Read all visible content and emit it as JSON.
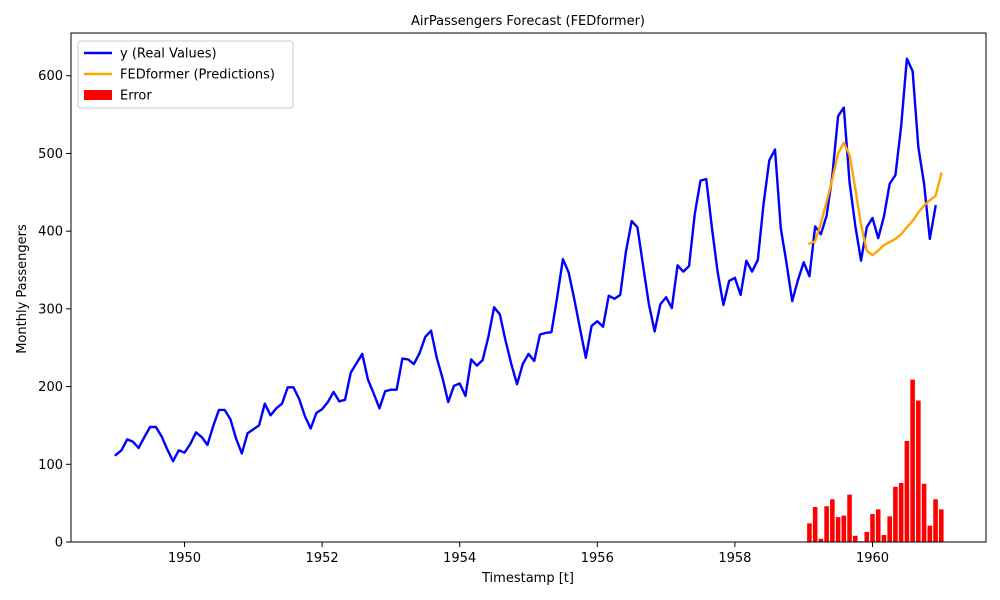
{
  "chart_data": {
    "type": "line",
    "title": "AirPassengers Forecast (FEDformer)",
    "xlabel": "Timestamp [t]",
    "ylabel": "Monthly Passengers",
    "xlim": [
      1948.35,
      1961.65
    ],
    "ylim": [
      0,
      655
    ],
    "x_ticks": [
      1950,
      1952,
      1954,
      1956,
      1958,
      1960
    ],
    "y_ticks": [
      0,
      100,
      200,
      300,
      400,
      500,
      600
    ],
    "legend_position": "upper-left",
    "grid": false,
    "colors": {
      "real": "#0000ff",
      "prediction": "#ffa500",
      "error": "#ff0000"
    },
    "series": [
      {
        "name": "y (Real Values)",
        "kind": "line",
        "x_start": 1949.0,
        "x_step": 0.0833333,
        "values": [
          112,
          118,
          132,
          129,
          121,
          135,
          148,
          148,
          136,
          119,
          104,
          118,
          115,
          126,
          141,
          135,
          125,
          149,
          170,
          170,
          158,
          133,
          114,
          140,
          145,
          150,
          178,
          163,
          172,
          178,
          199,
          199,
          184,
          162,
          146,
          166,
          171,
          180,
          193,
          181,
          183,
          218,
          230,
          242,
          209,
          191,
          172,
          194,
          196,
          196,
          236,
          235,
          229,
          243,
          264,
          272,
          237,
          211,
          180,
          201,
          204,
          188,
          235,
          227,
          234,
          264,
          302,
          293,
          259,
          229,
          203,
          229,
          242,
          233,
          267,
          269,
          270,
          315,
          364,
          347,
          312,
          274,
          237,
          278,
          284,
          277,
          317,
          313,
          318,
          374,
          413,
          405,
          355,
          306,
          271,
          306,
          315,
          301,
          356,
          348,
          355,
          422,
          465,
          467,
          404,
          347,
          305,
          336,
          340,
          318,
          362,
          348,
          363,
          435,
          491,
          505,
          404,
          359,
          310,
          337,
          360,
          342,
          406,
          396,
          420,
          472,
          548,
          559,
          463,
          407,
          362,
          405,
          417,
          391,
          419,
          461,
          472,
          535,
          622,
          606,
          508,
          461,
          390,
          432
        ]
      },
      {
        "name": "FEDformer (Predictions)",
        "kind": "line",
        "x_start": 1959.0833,
        "x_step": 0.0833333,
        "values": [
          384,
          387,
          410,
          438,
          467,
          500,
          514,
          498,
          455,
          408,
          375,
          369,
          375,
          382,
          386,
          390,
          396,
          405,
          413,
          424,
          433,
          440,
          445,
          474
        ]
      },
      {
        "name": "Error",
        "kind": "bar",
        "x_start": 1959.0833,
        "x_step": 0.0833333,
        "values": [
          24,
          45,
          4,
          46,
          55,
          32,
          34,
          61,
          8,
          1,
          13,
          36,
          42,
          9,
          33,
          71,
          76,
          130,
          209,
          182,
          75,
          21,
          55,
          42
        ]
      }
    ]
  }
}
